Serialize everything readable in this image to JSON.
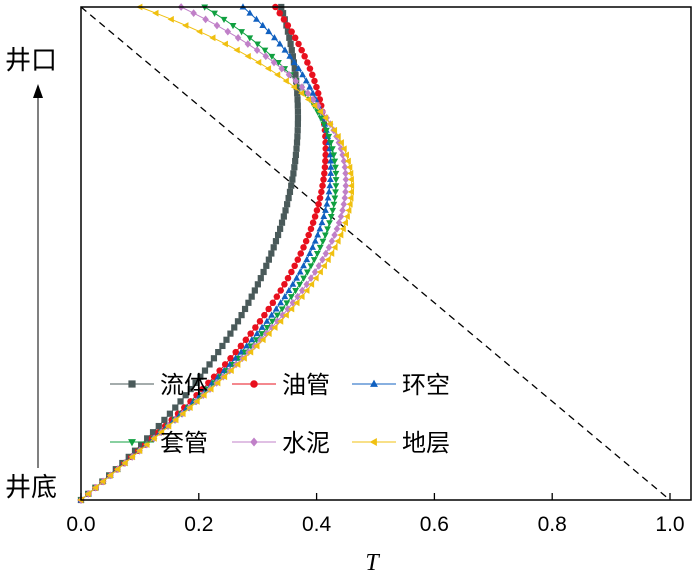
{
  "chart_data": {
    "type": "line",
    "xlabel": "T",
    "xlim": [
      0.0,
      1.0
    ],
    "xticks": [
      "0.0",
      "0.2",
      "0.4",
      "0.6",
      "0.8",
      "1.0"
    ],
    "y_top_label": "井口",
    "y_bottom_label": "井底",
    "reference_line": {
      "style": "dashed",
      "color": "#000000",
      "from_T": 0.0,
      "to_T": 1.0
    },
    "legend_location": "lower-left",
    "series": [
      {
        "name": "流体",
        "marker": "square",
        "color": "#4a5a5a",
        "T_top": 0.34
      },
      {
        "name": "油管",
        "marker": "circle",
        "color": "#e8101e",
        "T_top": 0.33
      },
      {
        "name": "环空",
        "marker": "triangle-up",
        "color": "#1060c0",
        "T_top": 0.275
      },
      {
        "name": "套管",
        "marker": "triangle-down",
        "color": "#10a040",
        "T_top": 0.21
      },
      {
        "name": "水泥",
        "marker": "diamond",
        "color": "#c080c8",
        "T_top": 0.17
      },
      {
        "name": "地层",
        "marker": "triangle-left",
        "color": "#f0c010",
        "T_top": 0.1
      }
    ]
  }
}
